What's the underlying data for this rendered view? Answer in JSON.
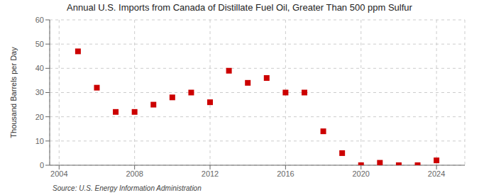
{
  "chart_data": {
    "type": "scatter",
    "title": "Annual U.S. Imports from Canada of Distillate Fuel Oil, Greater Than 500 ppm Sulfur",
    "ylabel": "Thousand Barrels per Day",
    "source": "Source: U.S. Energy Information Administration",
    "x": [
      2005,
      2006,
      2007,
      2008,
      2009,
      2010,
      2011,
      2012,
      2013,
      2014,
      2015,
      2016,
      2017,
      2018,
      2019,
      2020,
      2021,
      2022,
      2023,
      2024
    ],
    "values": [
      47,
      32,
      22,
      22,
      25,
      28,
      30,
      26,
      39,
      34,
      36,
      30,
      30,
      14,
      5,
      0,
      1,
      0,
      0,
      2
    ],
    "color": "#cc0000",
    "marker": "square",
    "xlim": [
      2003.5,
      2025.5
    ],
    "xticks": [
      2004,
      2008,
      2012,
      2016,
      2020,
      2024
    ],
    "ylim": [
      0,
      60
    ],
    "yticks": [
      0,
      10,
      20,
      30,
      40,
      50,
      60
    ],
    "grid": true
  }
}
